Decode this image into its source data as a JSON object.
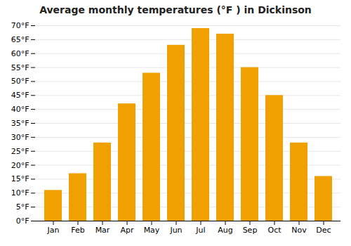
{
  "chart_data": {
    "type": "bar",
    "title": "Average monthly temperatures (°F ) in Dickinson",
    "categories": [
      "Jan",
      "Feb",
      "Mar",
      "Apr",
      "May",
      "Jun",
      "Jul",
      "Aug",
      "Sep",
      "Oct",
      "Nov",
      "Dec"
    ],
    "values": [
      11,
      17,
      28,
      42,
      53,
      63,
      69,
      67,
      55,
      45,
      28,
      16
    ],
    "color": "#F0A000",
    "ylim": [
      0,
      70
    ],
    "yticks": [
      {
        "value": 0,
        "label": "0°F"
      },
      {
        "value": 5,
        "label": "5°F"
      },
      {
        "value": 10,
        "label": "10°F"
      },
      {
        "value": 15,
        "label": "15°F"
      },
      {
        "value": 20,
        "label": "20°F"
      },
      {
        "value": 25,
        "label": "25°F"
      },
      {
        "value": 30,
        "label": "30°F"
      },
      {
        "value": 35,
        "label": "35°F"
      },
      {
        "value": 40,
        "label": "40°F"
      },
      {
        "value": 45,
        "label": "45°F"
      },
      {
        "value": 50,
        "label": "50°F"
      },
      {
        "value": 55,
        "label": "55°F"
      },
      {
        "value": 60,
        "label": "60°F"
      },
      {
        "value": 65,
        "label": "65°F"
      },
      {
        "value": 70,
        "label": "70°F"
      }
    ],
    "grid": true
  }
}
